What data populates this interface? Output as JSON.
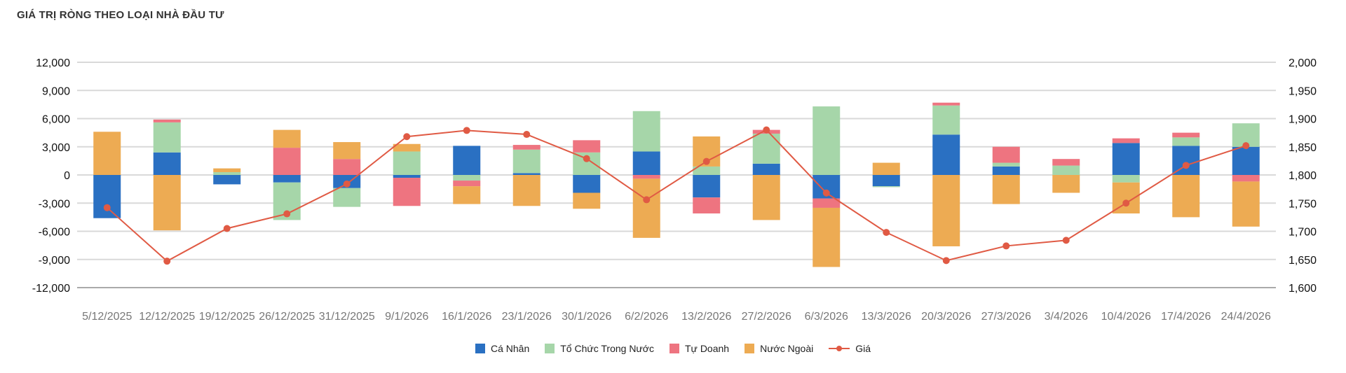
{
  "title": "GIÁ TRỊ RÒNG THEO LOẠI NHÀ ĐẦU TƯ",
  "chart_data": {
    "type": "bar",
    "stacked": true,
    "title": "GIÁ TRỊ RÒNG THEO LOẠI NHÀ ĐẦU TƯ",
    "categories": [
      "5/12/2025",
      "12/12/2025",
      "19/12/2025",
      "26/12/2025",
      "31/12/2025",
      "9/1/2026",
      "16/1/2026",
      "23/1/2026",
      "30/1/2026",
      "6/2/2026",
      "13/2/2026",
      "27/2/2026",
      "6/3/2026",
      "13/3/2026",
      "20/3/2026",
      "27/3/2026",
      "3/4/2026",
      "10/4/2026",
      "17/4/2026",
      "24/4/2026"
    ],
    "y_left": {
      "ylim": [
        -12000,
        12000
      ],
      "ticks": [
        "-12,000",
        "-9,000",
        "-6,000",
        "-3,000",
        "0",
        "3,000",
        "6,000",
        "9,000",
        "12,000"
      ]
    },
    "y_right": {
      "ylim": [
        1600,
        2000
      ],
      "ticks": [
        "1,600",
        "1,650",
        "1,700",
        "1,750",
        "1,800",
        "1,850",
        "1,900",
        "1,950",
        "2,000"
      ]
    },
    "grid": true,
    "legend_position": "bottom",
    "series": [
      {
        "name": "Cá Nhân",
        "color": "#2a70c2",
        "axis": "left",
        "values": [
          -4600,
          2400,
          -1000,
          -800,
          -1400,
          -300,
          3100,
          200,
          -1900,
          2500,
          -2400,
          1200,
          -2500,
          -1200,
          4300,
          900,
          0,
          3400,
          3100,
          3000
        ]
      },
      {
        "name": "Tổ Chức Trong Nước",
        "color": "#a6d6a9",
        "axis": "left",
        "values": [
          0,
          3200,
          300,
          -4000,
          -2000,
          2500,
          -600,
          2500,
          2400,
          4300,
          900,
          3200,
          7300,
          -100,
          3100,
          400,
          1000,
          -800,
          900,
          2500
        ]
      },
      {
        "name": "Tự Doanh",
        "color": "#ee7480",
        "axis": "left",
        "values": [
          0,
          300,
          0,
          2900,
          1700,
          -3000,
          -600,
          500,
          1300,
          -400,
          -1700,
          400,
          -1000,
          0,
          300,
          1700,
          700,
          500,
          500,
          -700
        ]
      },
      {
        "name": "Nước Ngoài",
        "color": "#edab53",
        "axis": "left",
        "values": [
          4600,
          -5900,
          400,
          1900,
          1800,
          800,
          -1900,
          -3300,
          -1700,
          -6300,
          3200,
          -4800,
          -6300,
          1300,
          -7600,
          -3100,
          -1900,
          -3300,
          -4500,
          -4800
        ]
      },
      {
        "name": "Giá",
        "color": "#e05a44",
        "axis": "right",
        "type": "line",
        "values": [
          1742,
          1647,
          1705,
          1731,
          1784,
          1868,
          1879,
          1872,
          1829,
          1756,
          1824,
          1880,
          1768,
          1698,
          1648,
          1674,
          1684,
          1750,
          1817,
          1852
        ]
      }
    ]
  }
}
